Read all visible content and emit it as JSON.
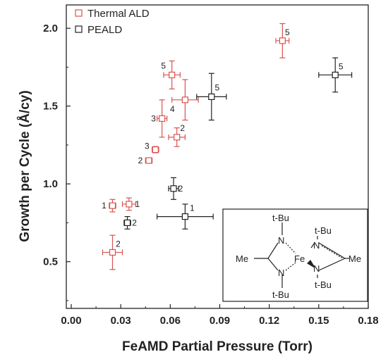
{
  "chart_data": {
    "type": "scatter",
    "xlabel": "FeAMD Partial Pressure (Torr)",
    "ylabel": "Growth per Cycle (Å/cy)",
    "xlim": [
      -0.003,
      0.18
    ],
    "ylim": [
      0.2,
      2.15
    ],
    "xticks": [
      0.0,
      0.03,
      0.06,
      0.09,
      0.12,
      0.15,
      0.18
    ],
    "xtick_labels": [
      "0.00",
      "0.03",
      "0.06",
      "0.09",
      "0.12",
      "0.15",
      "0.18"
    ],
    "yticks": [
      0.5,
      1.0,
      1.5,
      2.0
    ],
    "ytick_labels": [
      "0.5",
      "1.0",
      "1.5",
      "2.0"
    ],
    "grid": false,
    "legend_position": "top-left",
    "series": [
      {
        "name": "Thermal ALD",
        "color": "#d9534f",
        "points": [
          {
            "x": 0.025,
            "y": 0.86,
            "xerr": 0.002,
            "yerr": 0.04,
            "label": "1"
          },
          {
            "x": 0.035,
            "y": 0.87,
            "xerr": 0.004,
            "yerr": 0.04,
            "label": "1"
          },
          {
            "x": 0.025,
            "y": 0.56,
            "xerr": 0.006,
            "yerr": 0.11,
            "label": "2"
          },
          {
            "x": 0.047,
            "y": 1.15,
            "xerr": 0.002,
            "yerr": 0.015,
            "label": "2"
          },
          {
            "x": 0.064,
            "y": 1.3,
            "xerr": 0.005,
            "yerr": 0.06,
            "label": "2"
          },
          {
            "x": 0.051,
            "y": 1.22,
            "xerr": 0.002,
            "yerr": 0.02,
            "label": "3"
          },
          {
            "x": 0.055,
            "y": 1.42,
            "xerr": 0.003,
            "yerr": 0.12,
            "label": "3"
          },
          {
            "x": 0.069,
            "y": 1.54,
            "xerr": 0.008,
            "yerr": 0.13,
            "label": "4"
          },
          {
            "x": 0.061,
            "y": 1.7,
            "xerr": 0.005,
            "yerr": 0.09,
            "label": "5"
          },
          {
            "x": 0.128,
            "y": 1.92,
            "xerr": 0.004,
            "yerr": 0.11,
            "label": "5"
          }
        ]
      },
      {
        "name": "PEALD",
        "color": "#222222",
        "points": [
          {
            "x": 0.034,
            "y": 0.75,
            "xerr": 0.002,
            "yerr": 0.04,
            "label": "2"
          },
          {
            "x": 0.062,
            "y": 0.97,
            "xerr": 0.003,
            "yerr": 0.07,
            "label": "2"
          },
          {
            "x": 0.069,
            "y": 0.79,
            "xerr": 0.017,
            "yerr": 0.08,
            "label": "1"
          },
          {
            "x": 0.085,
            "y": 1.56,
            "xerr": 0.009,
            "yerr": 0.15,
            "label": "5"
          },
          {
            "x": 0.16,
            "y": 1.7,
            "xerr": 0.01,
            "yerr": 0.11,
            "label": "5"
          }
        ]
      }
    ],
    "inset": {
      "description": "FeAMD molecule",
      "labels": [
        "t-Bu",
        "t-Bu",
        "t-Bu",
        "t-Bu",
        "N",
        "N",
        "N",
        "N",
        "Me",
        "Me",
        "Fe"
      ]
    }
  }
}
